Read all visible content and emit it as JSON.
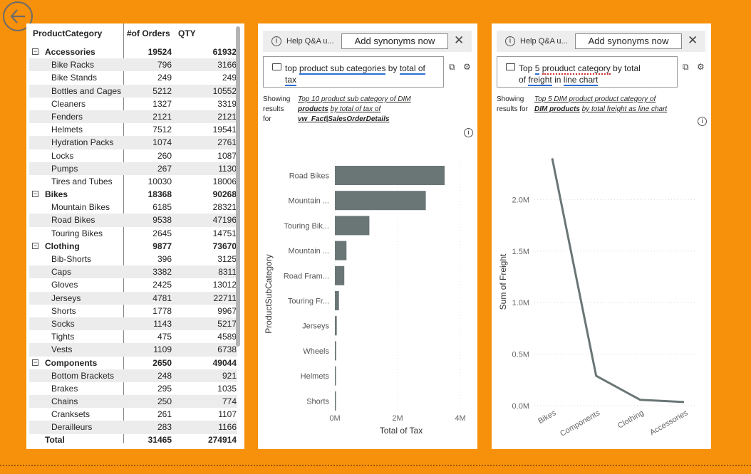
{
  "nav": {
    "back_icon": "arrow-left-circle-icon"
  },
  "matrix": {
    "headers": [
      "ProductCategory",
      "#of Orders",
      "QTY"
    ],
    "groups": [
      {
        "name": "Accessories",
        "orders": "19524",
        "qty": "61932",
        "items": [
          {
            "name": "Bike Racks",
            "orders": "796",
            "qty": "3166"
          },
          {
            "name": "Bike Stands",
            "orders": "249",
            "qty": "249"
          },
          {
            "name": "Bottles and Cages",
            "orders": "5212",
            "qty": "10552"
          },
          {
            "name": "Cleaners",
            "orders": "1327",
            "qty": "3319"
          },
          {
            "name": "Fenders",
            "orders": "2121",
            "qty": "2121"
          },
          {
            "name": "Helmets",
            "orders": "7512",
            "qty": "19541"
          },
          {
            "name": "Hydration Packs",
            "orders": "1074",
            "qty": "2761"
          },
          {
            "name": "Locks",
            "orders": "260",
            "qty": "1087"
          },
          {
            "name": "Pumps",
            "orders": "267",
            "qty": "1130"
          },
          {
            "name": "Tires and Tubes",
            "orders": "10030",
            "qty": "18006"
          }
        ]
      },
      {
        "name": "Bikes",
        "orders": "18368",
        "qty": "90268",
        "items": [
          {
            "name": "Mountain Bikes",
            "orders": "6185",
            "qty": "28321"
          },
          {
            "name": "Road Bikes",
            "orders": "9538",
            "qty": "47196"
          },
          {
            "name": "Touring Bikes",
            "orders": "2645",
            "qty": "14751"
          }
        ]
      },
      {
        "name": "Clothing",
        "orders": "9877",
        "qty": "73670",
        "items": [
          {
            "name": "Bib-Shorts",
            "orders": "396",
            "qty": "3125"
          },
          {
            "name": "Caps",
            "orders": "3382",
            "qty": "8311"
          },
          {
            "name": "Gloves",
            "orders": "2425",
            "qty": "13012"
          },
          {
            "name": "Jerseys",
            "orders": "4781",
            "qty": "22711"
          },
          {
            "name": "Shorts",
            "orders": "1778",
            "qty": "9967"
          },
          {
            "name": "Socks",
            "orders": "1143",
            "qty": "5217"
          },
          {
            "name": "Tights",
            "orders": "475",
            "qty": "4589"
          },
          {
            "name": "Vests",
            "orders": "1109",
            "qty": "6738"
          }
        ]
      },
      {
        "name": "Components",
        "orders": "2650",
        "qty": "49044",
        "items": [
          {
            "name": "Bottom Brackets",
            "orders": "248",
            "qty": "921"
          },
          {
            "name": "Brakes",
            "orders": "295",
            "qty": "1035"
          },
          {
            "name": "Chains",
            "orders": "250",
            "qty": "774"
          },
          {
            "name": "Cranksets",
            "orders": "261",
            "qty": "1107"
          },
          {
            "name": "Derailleurs",
            "orders": "283",
            "qty": "1166"
          }
        ]
      }
    ],
    "total": {
      "label": "Total",
      "orders": "31465",
      "qty": "274914"
    }
  },
  "qa1": {
    "help_text": "Help Q&A u...",
    "synonyms_button": "Add synonyms now",
    "close_icon": "close-icon",
    "question_parts": [
      "top",
      "product sub categories",
      "by",
      "total of tax"
    ],
    "showing_label": [
      "Showing",
      "results",
      "for"
    ],
    "result_parts": [
      "Top 10 product sub category of DIM",
      "products",
      "by total of tax of",
      "vw_Fact|SalesOrderDetails"
    ]
  },
  "qa2": {
    "help_text": "Help Q&A u...",
    "synonyms_button": "Add synonyms now",
    "close_icon": "close-icon",
    "question_parts": [
      "Top",
      "5",
      "prouduct category",
      "by total",
      "of",
      "freight",
      "in",
      "line chart"
    ],
    "showing_label": [
      "Showing",
      "results for"
    ],
    "result_parts": [
      "Top 5 DIM product product category of",
      "DIM products",
      "by total freight as line chart"
    ]
  },
  "chart_data": [
    {
      "type": "bar",
      "orientation": "horizontal",
      "categories": [
        "Road Bikes",
        "Mountain ...",
        "Touring Bik...",
        "Mountain ...",
        "Road Fram...",
        "Touring Fr...",
        "Jerseys",
        "Wheels",
        "Helmets",
        "Shorts"
      ],
      "values": [
        3.5,
        2.9,
        1.1,
        0.37,
        0.3,
        0.13,
        0.06,
        0.04,
        0.03,
        0.02
      ],
      "xlabel": "Total of Tax",
      "ylabel": "ProductSubCategory",
      "xticks": [
        "0M",
        "2M",
        "4M"
      ],
      "xlim": [
        0,
        4
      ],
      "unit": "M",
      "color": "#6a7576",
      "grid": false
    },
    {
      "type": "line",
      "categories": [
        "Bikes",
        "Components",
        "Clothing",
        "Accessories"
      ],
      "values": [
        2.4,
        0.29,
        0.057,
        0.035
      ],
      "xlabel": "ProductCategory",
      "ylabel": "Sum of Freight",
      "yticks": [
        "0.0M",
        "0.5M",
        "1.0M",
        "1.5M",
        "2.0M"
      ],
      "ylim": [
        0,
        2.5
      ],
      "unit": "M",
      "color": "#6a7576",
      "grid": true
    }
  ]
}
